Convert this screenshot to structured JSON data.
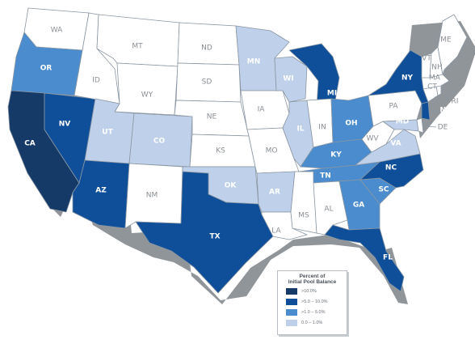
{
  "colors": {
    "gt10": "#163a68",
    "gt5to10": "#0f4f99",
    "gt1to5": "#4a8ccd",
    "gt0to1": "#bfd1ea",
    "none": "#ffffff",
    "border": "#8a96a3",
    "shadow": "#7a7f85"
  },
  "legend": {
    "title_line1": "Percent of",
    "title_line2": "Initial Pool Balance",
    "items": [
      {
        "label": ">10.0%",
        "class": "gt10"
      },
      {
        "label": ">5.0 – 10.0%",
        "class": "gt5to10"
      },
      {
        "label": ">1.0 – 5.0%",
        "class": "gt1to5"
      },
      {
        "label": "0.0 – 1.0%",
        "class": "gt0to1"
      }
    ]
  },
  "states": {
    "WA": {
      "label": "WA",
      "class": "none"
    },
    "OR": {
      "label": "OR",
      "class": "gt1to5"
    },
    "CA": {
      "label": "CA",
      "class": "gt10"
    },
    "NV": {
      "label": "NV",
      "class": "gt5to10"
    },
    "ID": {
      "label": "ID",
      "class": "none"
    },
    "MT": {
      "label": "MT",
      "class": "none"
    },
    "WY": {
      "label": "WY",
      "class": "none"
    },
    "UT": {
      "label": "UT",
      "class": "gt0to1"
    },
    "AZ": {
      "label": "AZ",
      "class": "gt5to10"
    },
    "CO": {
      "label": "CO",
      "class": "gt0to1"
    },
    "NM": {
      "label": "NM",
      "class": "none"
    },
    "ND": {
      "label": "ND",
      "class": "none"
    },
    "SD": {
      "label": "SD",
      "class": "none"
    },
    "NE": {
      "label": "NE",
      "class": "none"
    },
    "KS": {
      "label": "KS",
      "class": "none"
    },
    "OK": {
      "label": "OK",
      "class": "gt0to1"
    },
    "TX": {
      "label": "TX",
      "class": "gt5to10"
    },
    "MN": {
      "label": "MN",
      "class": "gt0to1"
    },
    "IA": {
      "label": "IA",
      "class": "none"
    },
    "MO": {
      "label": "MO",
      "class": "none"
    },
    "AR": {
      "label": "AR",
      "class": "gt0to1"
    },
    "LA": {
      "label": "LA",
      "class": "none"
    },
    "WI": {
      "label": "WI",
      "class": "gt0to1"
    },
    "IL": {
      "label": "IL",
      "class": "gt0to1"
    },
    "MS": {
      "label": "MS",
      "class": "none"
    },
    "MI": {
      "label": "MI",
      "class": "gt5to10"
    },
    "IN": {
      "label": "IN",
      "class": "none"
    },
    "OH": {
      "label": "OH",
      "class": "gt1to5"
    },
    "KY": {
      "label": "KY",
      "class": "gt1to5"
    },
    "TN": {
      "label": "TN",
      "class": "gt1to5"
    },
    "AL": {
      "label": "AL",
      "class": "none"
    },
    "GA": {
      "label": "GA",
      "class": "gt1to5"
    },
    "FL": {
      "label": "FL",
      "class": "gt5to10"
    },
    "SC": {
      "label": "SC",
      "class": "gt1to5"
    },
    "NC": {
      "label": "NC",
      "class": "gt5to10"
    },
    "VA": {
      "label": "VA",
      "class": "gt0to1"
    },
    "WV": {
      "label": "WV",
      "class": "none"
    },
    "PA": {
      "label": "PA",
      "class": "none"
    },
    "NY": {
      "label": "NY",
      "class": "gt5to10"
    },
    "MD": {
      "label": "MD",
      "class": "gt0to1"
    },
    "DE": {
      "label": "DE",
      "class": "none"
    },
    "NJ": {
      "label": "NJ",
      "class": "gt5to10"
    },
    "CT": {
      "label": "CT",
      "class": "none"
    },
    "RI": {
      "label": "RI",
      "class": "none"
    },
    "MA": {
      "label": "MA",
      "class": "none"
    },
    "VT": {
      "label": "VT",
      "class": "none"
    },
    "NH": {
      "label": "NH",
      "class": "none"
    },
    "ME": {
      "label": "ME",
      "class": "none"
    }
  }
}
